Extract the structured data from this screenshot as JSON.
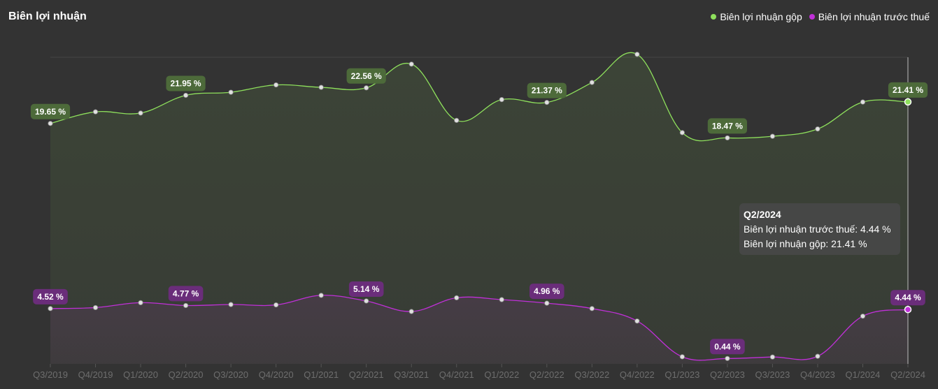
{
  "header": {
    "title": "Biên lợi nhuận"
  },
  "legend": [
    {
      "label": "Biên lợi nhuận gộp",
      "color": "#8ee05c"
    },
    {
      "label": "Biên lợi nhuận trước thuế",
      "color": "#c030d8"
    }
  ],
  "tooltip": {
    "title": "Q2/2024",
    "line1": "Biên lợi nhuận trước thuế: 4.44 %",
    "line2": "Biên lợi nhuận gộp: 21.41 %"
  },
  "chart_data": {
    "type": "area",
    "categories": [
      "Q3/2019",
      "Q4/2019",
      "Q1/2020",
      "Q2/2020",
      "Q3/2020",
      "Q4/2020",
      "Q1/2021",
      "Q2/2021",
      "Q3/2021",
      "Q4/2021",
      "Q1/2022",
      "Q2/2022",
      "Q3/2022",
      "Q4/2022",
      "Q1/2023",
      "Q2/2023",
      "Q3/2023",
      "Q4/2023",
      "Q1/2024",
      "Q2/2024"
    ],
    "series": [
      {
        "name": "Biên lợi nhuận gộp",
        "color": "#8ee05c",
        "values": [
          19.65,
          20.6,
          20.5,
          21.95,
          22.2,
          22.8,
          22.6,
          22.56,
          24.5,
          19.9,
          21.6,
          21.37,
          23.0,
          25.3,
          18.9,
          18.47,
          18.6,
          19.2,
          21.4,
          21.41
        ],
        "labeled_indices": [
          0,
          3,
          7,
          11,
          15,
          19
        ]
      },
      {
        "name": "Biên lợi nhuận trước thuế",
        "color": "#c030d8",
        "values": [
          4.52,
          4.6,
          5.0,
          4.77,
          4.85,
          4.82,
          5.6,
          5.14,
          4.28,
          5.4,
          5.25,
          4.96,
          4.52,
          3.5,
          0.58,
          0.44,
          0.56,
          0.62,
          3.9,
          4.44
        ],
        "labeled_indices": [
          0,
          3,
          7,
          11,
          15,
          19
        ]
      }
    ],
    "ylim": [
      0,
      27
    ],
    "grid": false,
    "legend_position": "top-right",
    "highlighted_category": "Q2/2024"
  }
}
